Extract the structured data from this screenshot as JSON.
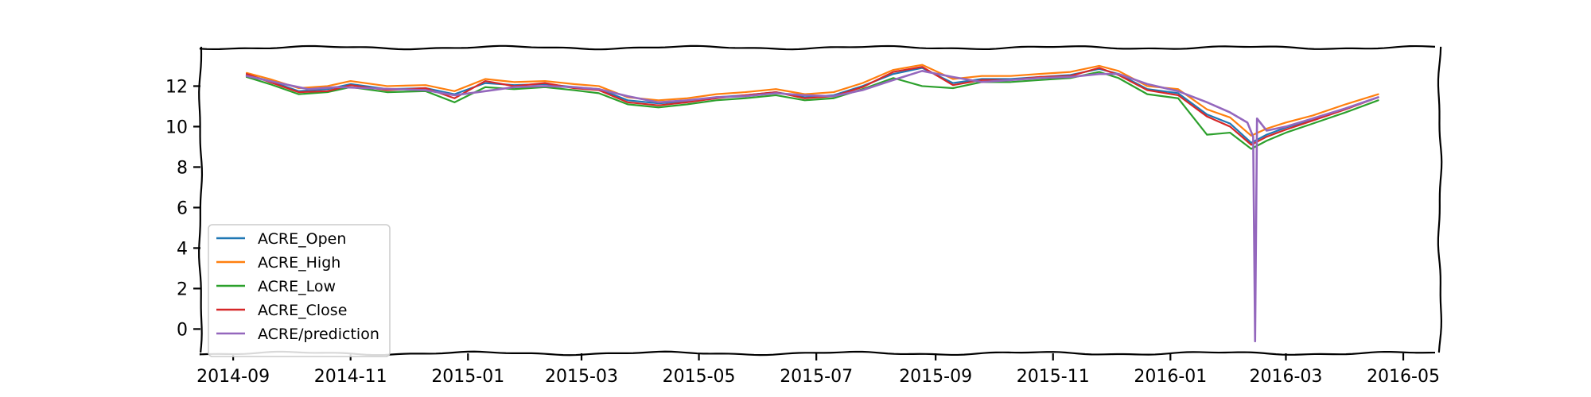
{
  "chart_data": {
    "type": "line",
    "title": "",
    "xlabel": "",
    "ylabel": "",
    "xlim": [
      "2014-08-15",
      "2016-05-20"
    ],
    "ylim": [
      -1.2,
      13.9
    ],
    "grid": false,
    "legend_position": "lower-left",
    "y_ticks": [
      0,
      2,
      4,
      6,
      8,
      10,
      12
    ],
    "x_ticks": [
      {
        "date": "2014-09-01",
        "label": "2014-09"
      },
      {
        "date": "2014-11-01",
        "label": "2014-11"
      },
      {
        "date": "2015-01-01",
        "label": "2015-01"
      },
      {
        "date": "2015-03-01",
        "label": "2015-03"
      },
      {
        "date": "2015-05-01",
        "label": "2015-05"
      },
      {
        "date": "2015-07-01",
        "label": "2015-07"
      },
      {
        "date": "2015-09-01",
        "label": "2015-09"
      },
      {
        "date": "2015-11-01",
        "label": "2015-11"
      },
      {
        "date": "2016-01-01",
        "label": "2016-01"
      },
      {
        "date": "2016-03-01",
        "label": "2016-03"
      },
      {
        "date": "2016-05-01",
        "label": "2016-05"
      }
    ],
    "series": [
      {
        "name": "ACRE_Open",
        "color": "#1f77b4",
        "points": [
          [
            "2014-09-08",
            12.55
          ],
          [
            "2014-09-20",
            12.25
          ],
          [
            "2014-10-05",
            11.75
          ],
          [
            "2014-10-20",
            11.85
          ],
          [
            "2014-11-01",
            12.1
          ],
          [
            "2014-11-20",
            11.85
          ],
          [
            "2014-12-10",
            11.9
          ],
          [
            "2014-12-25",
            11.6
          ],
          [
            "2015-01-10",
            12.15
          ],
          [
            "2015-01-25",
            12.05
          ],
          [
            "2015-02-10",
            12.1
          ],
          [
            "2015-02-25",
            11.95
          ],
          [
            "2015-03-10",
            11.85
          ],
          [
            "2015-03-25",
            11.3
          ],
          [
            "2015-04-10",
            11.15
          ],
          [
            "2015-04-25",
            11.25
          ],
          [
            "2015-05-10",
            11.45
          ],
          [
            "2015-05-25",
            11.55
          ],
          [
            "2015-06-10",
            11.7
          ],
          [
            "2015-06-25",
            11.45
          ],
          [
            "2015-07-10",
            11.55
          ],
          [
            "2015-07-25",
            12.0
          ],
          [
            "2015-08-10",
            12.6
          ],
          [
            "2015-08-25",
            12.9
          ],
          [
            "2015-09-10",
            12.15
          ],
          [
            "2015-09-25",
            12.35
          ],
          [
            "2015-10-10",
            12.35
          ],
          [
            "2015-10-25",
            12.45
          ],
          [
            "2015-11-10",
            12.55
          ],
          [
            "2015-11-25",
            12.85
          ],
          [
            "2015-12-05",
            12.6
          ],
          [
            "2015-12-20",
            11.85
          ],
          [
            "2016-01-05",
            11.65
          ],
          [
            "2016-01-20",
            10.6
          ],
          [
            "2016-02-01",
            10.15
          ],
          [
            "2016-02-12",
            9.2
          ],
          [
            "2016-02-20",
            9.6
          ],
          [
            "2016-03-01",
            9.95
          ],
          [
            "2016-03-15",
            10.35
          ],
          [
            "2016-04-01",
            10.9
          ],
          [
            "2016-04-18",
            11.45
          ]
        ]
      },
      {
        "name": "ACRE_High",
        "color": "#ff7f0e",
        "points": [
          [
            "2014-09-08",
            12.65
          ],
          [
            "2014-09-20",
            12.35
          ],
          [
            "2014-10-05",
            11.9
          ],
          [
            "2014-10-20",
            12.0
          ],
          [
            "2014-11-01",
            12.25
          ],
          [
            "2014-11-20",
            12.0
          ],
          [
            "2014-12-10",
            12.05
          ],
          [
            "2014-12-25",
            11.75
          ],
          [
            "2015-01-10",
            12.35
          ],
          [
            "2015-01-25",
            12.2
          ],
          [
            "2015-02-10",
            12.25
          ],
          [
            "2015-02-25",
            12.1
          ],
          [
            "2015-03-10",
            12.0
          ],
          [
            "2015-03-25",
            11.45
          ],
          [
            "2015-04-10",
            11.3
          ],
          [
            "2015-04-25",
            11.4
          ],
          [
            "2015-05-10",
            11.6
          ],
          [
            "2015-05-25",
            11.7
          ],
          [
            "2015-06-10",
            11.85
          ],
          [
            "2015-06-25",
            11.6
          ],
          [
            "2015-07-10",
            11.7
          ],
          [
            "2015-07-25",
            12.15
          ],
          [
            "2015-08-10",
            12.8
          ],
          [
            "2015-08-25",
            13.05
          ],
          [
            "2015-09-10",
            12.35
          ],
          [
            "2015-09-25",
            12.5
          ],
          [
            "2015-10-10",
            12.5
          ],
          [
            "2015-10-25",
            12.6
          ],
          [
            "2015-11-10",
            12.7
          ],
          [
            "2015-11-25",
            13.0
          ],
          [
            "2015-12-05",
            12.75
          ],
          [
            "2015-12-20",
            12.0
          ],
          [
            "2016-01-05",
            11.85
          ],
          [
            "2016-01-20",
            10.85
          ],
          [
            "2016-02-01",
            10.45
          ],
          [
            "2016-02-12",
            9.55
          ],
          [
            "2016-02-20",
            9.9
          ],
          [
            "2016-03-01",
            10.2
          ],
          [
            "2016-03-15",
            10.55
          ],
          [
            "2016-04-01",
            11.1
          ],
          [
            "2016-04-18",
            11.6
          ]
        ]
      },
      {
        "name": "ACRE_Low",
        "color": "#2ca02c",
        "points": [
          [
            "2014-09-08",
            12.45
          ],
          [
            "2014-09-20",
            12.1
          ],
          [
            "2014-10-05",
            11.6
          ],
          [
            "2014-10-20",
            11.7
          ],
          [
            "2014-11-01",
            11.95
          ],
          [
            "2014-11-20",
            11.7
          ],
          [
            "2014-12-10",
            11.75
          ],
          [
            "2014-12-25",
            11.2
          ],
          [
            "2015-01-10",
            11.95
          ],
          [
            "2015-01-25",
            11.85
          ],
          [
            "2015-02-10",
            11.95
          ],
          [
            "2015-02-25",
            11.8
          ],
          [
            "2015-03-10",
            11.65
          ],
          [
            "2015-03-25",
            11.1
          ],
          [
            "2015-04-10",
            10.95
          ],
          [
            "2015-04-25",
            11.1
          ],
          [
            "2015-05-10",
            11.3
          ],
          [
            "2015-05-25",
            11.4
          ],
          [
            "2015-06-10",
            11.55
          ],
          [
            "2015-06-25",
            11.3
          ],
          [
            "2015-07-10",
            11.4
          ],
          [
            "2015-07-25",
            11.85
          ],
          [
            "2015-08-10",
            12.4
          ],
          [
            "2015-08-25",
            12.0
          ],
          [
            "2015-09-10",
            11.9
          ],
          [
            "2015-09-25",
            12.2
          ],
          [
            "2015-10-10",
            12.2
          ],
          [
            "2015-10-25",
            12.3
          ],
          [
            "2015-11-10",
            12.4
          ],
          [
            "2015-11-25",
            12.7
          ],
          [
            "2015-12-05",
            12.4
          ],
          [
            "2015-12-20",
            11.6
          ],
          [
            "2016-01-05",
            11.4
          ],
          [
            "2016-01-20",
            9.6
          ],
          [
            "2016-02-01",
            9.7
          ],
          [
            "2016-02-12",
            8.9
          ],
          [
            "2016-02-20",
            9.3
          ],
          [
            "2016-03-01",
            9.7
          ],
          [
            "2016-03-15",
            10.15
          ],
          [
            "2016-04-01",
            10.7
          ],
          [
            "2016-04-18",
            11.3
          ]
        ]
      },
      {
        "name": "ACRE_Close",
        "color": "#d62728",
        "points": [
          [
            "2014-09-08",
            12.6
          ],
          [
            "2014-09-20",
            12.2
          ],
          [
            "2014-10-05",
            11.7
          ],
          [
            "2014-10-20",
            11.75
          ],
          [
            "2014-11-01",
            12.05
          ],
          [
            "2014-11-20",
            11.8
          ],
          [
            "2014-12-10",
            11.9
          ],
          [
            "2014-12-25",
            11.4
          ],
          [
            "2015-01-10",
            12.25
          ],
          [
            "2015-01-25",
            12.0
          ],
          [
            "2015-02-10",
            12.15
          ],
          [
            "2015-02-25",
            11.9
          ],
          [
            "2015-03-10",
            11.8
          ],
          [
            "2015-03-25",
            11.2
          ],
          [
            "2015-04-10",
            11.05
          ],
          [
            "2015-04-25",
            11.2
          ],
          [
            "2015-05-10",
            11.4
          ],
          [
            "2015-05-25",
            11.55
          ],
          [
            "2015-06-10",
            11.7
          ],
          [
            "2015-06-25",
            11.4
          ],
          [
            "2015-07-10",
            11.5
          ],
          [
            "2015-07-25",
            11.95
          ],
          [
            "2015-08-10",
            12.7
          ],
          [
            "2015-08-25",
            12.95
          ],
          [
            "2015-09-10",
            12.05
          ],
          [
            "2015-09-25",
            12.3
          ],
          [
            "2015-10-10",
            12.3
          ],
          [
            "2015-10-25",
            12.45
          ],
          [
            "2015-11-10",
            12.5
          ],
          [
            "2015-11-25",
            12.9
          ],
          [
            "2015-12-05",
            12.55
          ],
          [
            "2015-12-20",
            11.8
          ],
          [
            "2016-01-05",
            11.55
          ],
          [
            "2016-01-20",
            10.5
          ],
          [
            "2016-02-01",
            10.0
          ],
          [
            "2016-02-12",
            9.1
          ],
          [
            "2016-02-20",
            9.5
          ],
          [
            "2016-03-01",
            9.85
          ],
          [
            "2016-03-15",
            10.3
          ],
          [
            "2016-04-01",
            10.85
          ],
          [
            "2016-04-18",
            11.45
          ]
        ]
      },
      {
        "name": "ACRE/prediction",
        "color": "#9467bd",
        "points": [
          [
            "2014-09-08",
            12.5
          ],
          [
            "2014-09-25",
            12.15
          ],
          [
            "2014-10-10",
            11.85
          ],
          [
            "2014-10-25",
            11.95
          ],
          [
            "2014-11-10",
            11.9
          ],
          [
            "2014-11-25",
            11.85
          ],
          [
            "2014-12-10",
            11.8
          ],
          [
            "2014-12-25",
            11.55
          ],
          [
            "2015-01-10",
            11.75
          ],
          [
            "2015-01-25",
            11.95
          ],
          [
            "2015-02-10",
            12.0
          ],
          [
            "2015-02-25",
            11.95
          ],
          [
            "2015-03-10",
            11.85
          ],
          [
            "2015-03-25",
            11.5
          ],
          [
            "2015-04-10",
            11.2
          ],
          [
            "2015-04-25",
            11.3
          ],
          [
            "2015-05-10",
            11.45
          ],
          [
            "2015-05-25",
            11.5
          ],
          [
            "2015-06-10",
            11.65
          ],
          [
            "2015-06-25",
            11.55
          ],
          [
            "2015-07-10",
            11.5
          ],
          [
            "2015-07-25",
            11.8
          ],
          [
            "2015-08-10",
            12.3
          ],
          [
            "2015-08-25",
            12.75
          ],
          [
            "2015-09-10",
            12.45
          ],
          [
            "2015-09-25",
            12.2
          ],
          [
            "2015-10-10",
            12.3
          ],
          [
            "2015-10-25",
            12.4
          ],
          [
            "2015-11-10",
            12.45
          ],
          [
            "2015-11-25",
            12.6
          ],
          [
            "2015-12-05",
            12.6
          ],
          [
            "2015-12-20",
            12.1
          ],
          [
            "2016-01-05",
            11.75
          ],
          [
            "2016-01-20",
            11.2
          ],
          [
            "2016-02-01",
            10.7
          ],
          [
            "2016-02-10",
            10.2
          ],
          [
            "2016-02-13",
            9.5
          ],
          [
            "2016-02-14",
            -0.6
          ],
          [
            "2016-02-15",
            10.4
          ],
          [
            "2016-02-20",
            9.8
          ],
          [
            "2016-03-01",
            10.0
          ],
          [
            "2016-03-15",
            10.4
          ],
          [
            "2016-04-01",
            10.9
          ],
          [
            "2016-04-18",
            11.45
          ]
        ]
      }
    ]
  }
}
